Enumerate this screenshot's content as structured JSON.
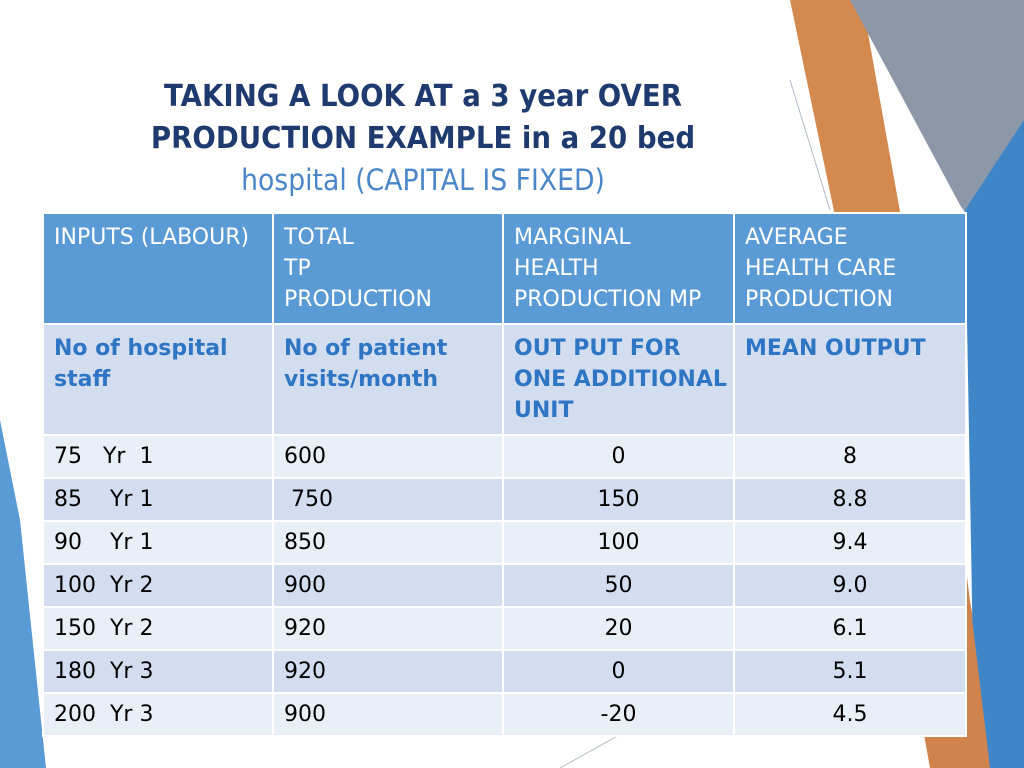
{
  "title": {
    "line1": "TAKING A LOOK AT a 3 year OVER",
    "line2": "PRODUCTION EXAMPLE  in a 20 bed",
    "line3": "hospital (CAPITAL IS FIXED)"
  },
  "table": {
    "headers": [
      [
        "INPUTS (LABOUR)"
      ],
      [
        "TOTAL",
        "TP",
        "PRODUCTION"
      ],
      [
        "MARGINAL",
        "HEALTH",
        "PRODUCTION MP"
      ],
      [
        "AVERAGE",
        "HEALTH CARE",
        "PRODUCTION"
      ]
    ],
    "subheaders": [
      [
        "No of hospital",
        "staff"
      ],
      [
        "No of patient",
        "visits/month"
      ],
      [
        "OUT PUT FOR",
        "ONE ADDITIONAL",
        "UNIT"
      ],
      [
        "MEAN OUTPUT"
      ]
    ],
    "rows": [
      [
        "75   Yr  1",
        "600",
        "0",
        "8"
      ],
      [
        "85    Yr 1",
        " 750",
        "150",
        "8.8"
      ],
      [
        "90    Yr 1",
        "850",
        "100",
        "9.4"
      ],
      [
        "100  Yr 2",
        "900",
        "50",
        "9.0"
      ],
      [
        "150  Yr 2",
        "920",
        "20",
        "6.1"
      ],
      [
        "180  Yr 3",
        "920",
        "0",
        "5.1"
      ],
      [
        "200  Yr 3",
        "900",
        "-20",
        "4.5"
      ]
    ]
  },
  "colors": {
    "title": "#1f3a6e",
    "subtitle": "#4a86c8",
    "header_bg": "#5b9bd5",
    "subheader_text": "#2e75c4"
  }
}
